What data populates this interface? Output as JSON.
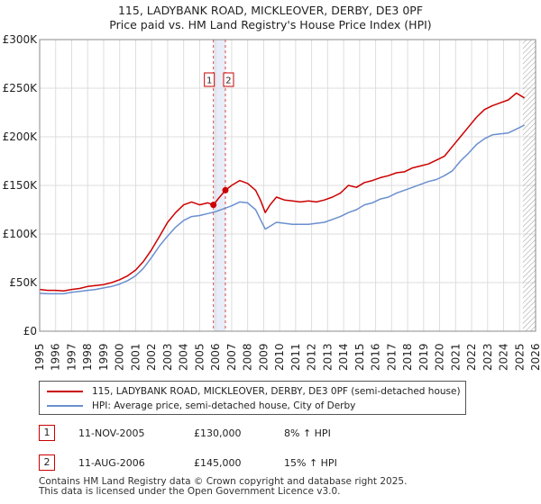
{
  "title": {
    "line1": "115, LADYBANK ROAD, MICKLEOVER, DERBY, DE3 0PF",
    "line2": "Price paid vs. HM Land Registry's House Price Index (HPI)"
  },
  "colors": {
    "property": "#cc0000",
    "hpi": "#6a8fcf",
    "grid": "#dddddd",
    "band": "#e8edf8",
    "marker_line": "#cc0000"
  },
  "chart_data": {
    "type": "line",
    "title": "115, LADYBANK ROAD, MICKLEOVER, DERBY, DE3 0PF",
    "subtitle": "Price paid vs. HM Land Registry's House Price Index (HPI)",
    "xlabel": "",
    "ylabel": "",
    "xlim": [
      1995,
      2026
    ],
    "ylim": [
      0,
      300000
    ],
    "x_ticks": [
      "1995",
      "1996",
      "1997",
      "1998",
      "1999",
      "2000",
      "2001",
      "2002",
      "2003",
      "2004",
      "2005",
      "2006",
      "2007",
      "2008",
      "2009",
      "2010",
      "2011",
      "2012",
      "2013",
      "2014",
      "2015",
      "2016",
      "2017",
      "2018",
      "2019",
      "2020",
      "2021",
      "2022",
      "2023",
      "2024",
      "2025",
      "2026"
    ],
    "y_ticks": [
      {
        "value": 0,
        "label": "£0"
      },
      {
        "value": 50000,
        "label": "£50K"
      },
      {
        "value": 100000,
        "label": "£100K"
      },
      {
        "value": 150000,
        "label": "£150K"
      },
      {
        "value": 200000,
        "label": "£200K"
      },
      {
        "value": 250000,
        "label": "£250K"
      },
      {
        "value": 300000,
        "label": "£300K"
      }
    ],
    "grid": true,
    "series": [
      {
        "name": "115, LADYBANK ROAD, MICKLEOVER, DERBY, DE3 0PF (semi-detached house)",
        "x": [
          1995,
          1995.5,
          1996,
          1996.5,
          1997,
          1997.5,
          1998,
          1998.5,
          1999,
          1999.5,
          2000,
          2000.5,
          2001,
          2001.5,
          2002,
          2002.5,
          2003,
          2003.5,
          2004,
          2004.5,
          2005,
          2005.5,
          2005.86,
          2006.2,
          2006.61,
          2007,
          2007.5,
          2008,
          2008.5,
          2008.8,
          2009.1,
          2009.4,
          2009.8,
          2010.3,
          2010.8,
          2011.3,
          2011.8,
          2012.3,
          2012.8,
          2013.3,
          2013.8,
          2014.3,
          2014.8,
          2015.3,
          2015.8,
          2016.3,
          2016.8,
          2017.3,
          2017.8,
          2018.3,
          2018.8,
          2019.3,
          2019.8,
          2020.3,
          2020.8,
          2021.3,
          2021.8,
          2022.3,
          2022.8,
          2023.3,
          2023.8,
          2024.3,
          2024.8,
          2025.3
        ],
        "y": [
          43000,
          42000,
          42000,
          41500,
          43000,
          44000,
          46000,
          47000,
          48000,
          50000,
          53000,
          57000,
          63000,
          72000,
          84000,
          98000,
          112000,
          122000,
          130000,
          133000,
          130000,
          132000,
          130000,
          137000,
          145000,
          150000,
          155000,
          152000,
          145000,
          135000,
          122000,
          130000,
          138000,
          135000,
          134000,
          133000,
          134000,
          133000,
          135000,
          138000,
          142000,
          150000,
          148000,
          153000,
          155000,
          158000,
          160000,
          163000,
          164000,
          168000,
          170000,
          172000,
          176000,
          180000,
          190000,
          200000,
          210000,
          220000,
          228000,
          232000,
          235000,
          238000,
          245000,
          240000
        ]
      },
      {
        "name": "HPI: Average price, semi-detached house, City of Derby",
        "x": [
          1995,
          1995.5,
          1996,
          1996.5,
          1997,
          1997.5,
          1998,
          1998.5,
          1999,
          1999.5,
          2000,
          2000.5,
          2001,
          2001.5,
          2002,
          2002.5,
          2003,
          2003.5,
          2004,
          2004.5,
          2005,
          2005.5,
          2006,
          2006.5,
          2007,
          2007.5,
          2008,
          2008.5,
          2008.8,
          2009.1,
          2009.4,
          2009.8,
          2010.3,
          2010.8,
          2011.3,
          2011.8,
          2012.3,
          2012.8,
          2013.3,
          2013.8,
          2014.3,
          2014.8,
          2015.3,
          2015.8,
          2016.3,
          2016.8,
          2017.3,
          2017.8,
          2018.3,
          2018.8,
          2019.3,
          2019.8,
          2020.3,
          2020.8,
          2021.3,
          2021.8,
          2022.3,
          2022.8,
          2023.3,
          2023.8,
          2024.3,
          2024.8,
          2025.3
        ],
        "y": [
          39000,
          38500,
          38500,
          38500,
          40000,
          41000,
          42000,
          43000,
          44500,
          46000,
          48500,
          52000,
          57000,
          65000,
          76000,
          88000,
          98000,
          107000,
          114000,
          118000,
          119000,
          121000,
          123000,
          126000,
          129000,
          133000,
          132000,
          125000,
          115000,
          105000,
          108000,
          112000,
          111000,
          110000,
          110000,
          110000,
          111000,
          112000,
          115000,
          118000,
          122000,
          125000,
          130000,
          132000,
          136000,
          138000,
          142000,
          145000,
          148000,
          151000,
          154000,
          156000,
          160000,
          165000,
          175000,
          183000,
          192000,
          198000,
          202000,
          203000,
          204000,
          208000,
          212000
        ]
      }
    ],
    "sales": [
      {
        "label": "1",
        "x": 2005.86,
        "y": 130000
      },
      {
        "label": "2",
        "x": 2006.61,
        "y": 145000
      }
    ],
    "band": {
      "from": 2005.86,
      "to": 2006.61
    },
    "hatch_from": 2025.2
  },
  "legend": {
    "property_label": "115, LADYBANK ROAD, MICKLEOVER, DERBY, DE3 0PF (semi-detached house)",
    "hpi_label": "HPI: Average price, semi-detached house, City of Derby"
  },
  "transactions": [
    {
      "num": "1",
      "date": "11-NOV-2005",
      "price": "£130,000",
      "hpi": "8% ↑ HPI"
    },
    {
      "num": "2",
      "date": "11-AUG-2006",
      "price": "£145,000",
      "hpi": "15% ↑ HPI"
    }
  ],
  "footer": {
    "line1": "Contains HM Land Registry data © Crown copyright and database right 2025.",
    "line2": "This data is licensed under the Open Government Licence v3.0."
  }
}
